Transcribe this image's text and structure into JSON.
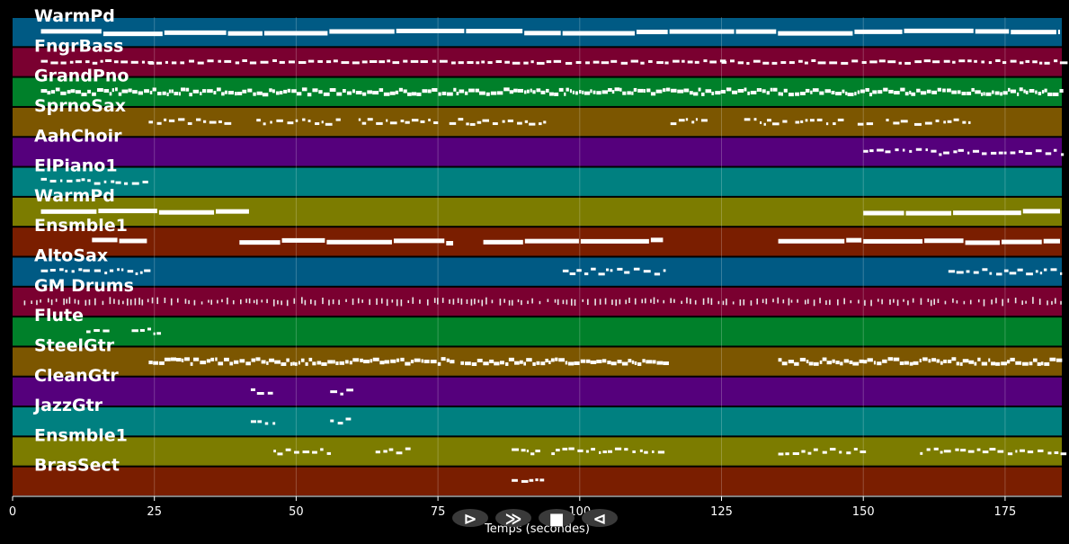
{
  "axis": {
    "xlabel": "Temps (secondes)",
    "xlim": [
      0,
      185
    ],
    "ticks": [
      0,
      25,
      50,
      75,
      100,
      125,
      150,
      175
    ]
  },
  "tracks": [
    {
      "name": "WarmPd",
      "color": "#005a84",
      "style": "sustain",
      "segments": [
        [
          5,
          185
        ]
      ]
    },
    {
      "name": "FngrBass",
      "color": "#7a0030",
      "style": "bass",
      "segments": [
        [
          5,
          24
        ],
        [
          24,
          115
        ],
        [
          115,
          125
        ],
        [
          125,
          185
        ]
      ]
    },
    {
      "name": "GrandPno",
      "color": "#00802a",
      "style": "dense",
      "segments": [
        [
          5,
          185
        ]
      ]
    },
    {
      "name": "SprnoSax",
      "color": "#7c5600",
      "style": "sparse",
      "segments": [
        [
          24,
          38
        ],
        [
          43,
          58
        ],
        [
          61,
          75
        ],
        [
          77,
          94
        ],
        [
          116,
          123
        ],
        [
          129,
          137
        ],
        [
          138,
          146
        ],
        [
          149,
          152
        ],
        [
          154,
          157
        ],
        [
          159,
          169
        ]
      ]
    },
    {
      "name": "AahChoir",
      "color": "#55007c",
      "style": "sparse",
      "segments": [
        [
          150,
          185
        ]
      ]
    },
    {
      "name": "ElPiano1",
      "color": "#008080",
      "style": "sparse",
      "segments": [
        [
          5,
          24
        ]
      ]
    },
    {
      "name": "WarmPd",
      "color": "#7c7c00",
      "style": "sustain",
      "segments": [
        [
          5,
          42
        ],
        [
          150,
          185
        ]
      ]
    },
    {
      "name": "Ensmble1",
      "color": "#7a1e00",
      "style": "sustain",
      "segments": [
        [
          14,
          24
        ],
        [
          40,
          78
        ],
        [
          83,
          115
        ],
        [
          135,
          150
        ],
        [
          150,
          185
        ]
      ]
    },
    {
      "name": "AltoSax",
      "color": "#005a84",
      "style": "sparse",
      "segments": [
        [
          5,
          24
        ],
        [
          97,
          115
        ],
        [
          165,
          185
        ]
      ]
    },
    {
      "name": "GM Drums",
      "color": "#7a0030",
      "style": "drums",
      "segments": [
        [
          2,
          185
        ]
      ]
    },
    {
      "name": "Flute",
      "color": "#00802a",
      "style": "sparse",
      "segments": [
        [
          13,
          17
        ],
        [
          21,
          26
        ]
      ]
    },
    {
      "name": "SteelGtr",
      "color": "#7c5600",
      "style": "dense",
      "segments": [
        [
          24,
          78
        ],
        [
          79,
          115
        ],
        [
          135,
          150
        ],
        [
          150,
          185
        ]
      ]
    },
    {
      "name": "CleanGtr",
      "color": "#55007c",
      "style": "sparse",
      "segments": [
        [
          42,
          46
        ],
        [
          56,
          60
        ]
      ]
    },
    {
      "name": "JazzGtr",
      "color": "#008080",
      "style": "sparse",
      "segments": [
        [
          42,
          46
        ],
        [
          56,
          60
        ]
      ]
    },
    {
      "name": "Ensmble1",
      "color": "#7c7c00",
      "style": "sparse",
      "segments": [
        [
          46,
          56
        ],
        [
          64,
          70
        ],
        [
          88,
          93
        ],
        [
          95,
          115
        ],
        [
          135,
          146
        ],
        [
          147,
          150
        ],
        [
          160,
          185
        ]
      ]
    },
    {
      "name": "BrasSect",
      "color": "#7a1e00",
      "style": "sparse",
      "segments": [
        [
          88,
          93
        ]
      ]
    }
  ],
  "controls": [
    {
      "name": "play-button",
      "glyph": "⊳"
    },
    {
      "name": "forward-button",
      "glyph": "≫"
    },
    {
      "name": "stop-button",
      "glyph": "■"
    },
    {
      "name": "rewind-button",
      "glyph": "⊲"
    }
  ]
}
